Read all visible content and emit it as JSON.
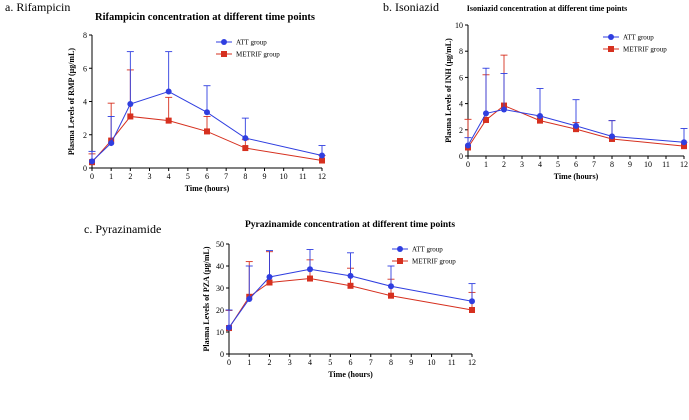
{
  "panels": [
    {
      "label": "a. Rifampicin"
    },
    {
      "label": "b. Isoniazid"
    },
    {
      "label": "c. Pyrazinamide"
    }
  ],
  "colors": {
    "att": "#2f3ee0",
    "metrif": "#d6301f",
    "axis": "#000000"
  },
  "chart_data": [
    {
      "type": "line",
      "title": "Rifampicin concentration at different time points",
      "xlabel": "Time (hours)",
      "ylabel": "Plasma Levels of RMP (μg/mL)",
      "x": [
        0,
        1,
        2,
        4,
        6,
        8,
        12
      ],
      "xticks": [
        0,
        1,
        2,
        3,
        4,
        5,
        6,
        7,
        8,
        9,
        10,
        11,
        12
      ],
      "yticks": [
        0,
        2,
        4,
        6,
        8
      ],
      "xlim": [
        0,
        12
      ],
      "ylim": [
        0,
        8
      ],
      "legend": "top-right",
      "series": [
        {
          "name": "ATT group",
          "marker": "circle",
          "values": [
            0.4,
            1.5,
            3.85,
            4.6,
            3.35,
            1.8,
            0.75
          ],
          "err": [
            0.6,
            1.6,
            3.15,
            2.4,
            1.6,
            1.2,
            0.6
          ]
        },
        {
          "name": "METRIF group",
          "marker": "square",
          "values": [
            0.35,
            1.65,
            3.1,
            2.85,
            2.2,
            1.2,
            0.45
          ],
          "err": [
            0.5,
            2.25,
            2.8,
            1.4,
            0.9,
            0.5,
            0.3
          ]
        }
      ]
    },
    {
      "type": "line",
      "title": "Isoniazid concentration at different time points",
      "xlabel": "Time (hours)",
      "ylabel": "Plasma Levels of INH (μg/mL)",
      "x": [
        0,
        1,
        2,
        4,
        6,
        8,
        12
      ],
      "xticks": [
        0,
        1,
        2,
        3,
        4,
        5,
        6,
        7,
        8,
        9,
        10,
        11,
        12
      ],
      "yticks": [
        0,
        2,
        4,
        6,
        8,
        10
      ],
      "xlim": [
        0,
        12
      ],
      "ylim": [
        0,
        10
      ],
      "legend": "top-right",
      "series": [
        {
          "name": "ATT group",
          "marker": "circle",
          "values": [
            0.8,
            3.25,
            3.55,
            3.05,
            2.3,
            1.5,
            1.05
          ],
          "err": [
            0.6,
            3.45,
            2.75,
            2.1,
            2.0,
            1.2,
            1.05
          ]
        },
        {
          "name": "METRIF group",
          "marker": "square",
          "values": [
            0.65,
            2.75,
            3.85,
            2.7,
            2.05,
            1.3,
            0.75
          ],
          "err": [
            2.15,
            3.45,
            3.85,
            0.3,
            0.5,
            1.4,
            0.3
          ]
        }
      ]
    },
    {
      "type": "line",
      "title": "Pyrazinamide concentration at different time points",
      "xlabel": "Time (hours)",
      "ylabel": "Plasma Levels of PZA (μg/mL)",
      "x": [
        0,
        1,
        2,
        4,
        6,
        8,
        12
      ],
      "xticks": [
        0,
        1,
        2,
        3,
        4,
        5,
        6,
        7,
        8,
        9,
        10,
        11,
        12
      ],
      "yticks": [
        0,
        10,
        20,
        30,
        40,
        50
      ],
      "xlim": [
        0,
        12
      ],
      "ylim": [
        0,
        50
      ],
      "legend": "top-right",
      "series": [
        {
          "name": "ATT group",
          "marker": "circle",
          "values": [
            12,
            25,
            35,
            38.5,
            35.5,
            30.8,
            24
          ],
          "err": [
            8,
            15,
            12,
            9,
            10.5,
            9.2,
            8
          ]
        },
        {
          "name": "METRIF group",
          "marker": "square",
          "values": [
            11.8,
            26,
            32.5,
            34.3,
            31,
            26.5,
            20
          ],
          "err": [
            8,
            16,
            14,
            8.5,
            8,
            7.5,
            8
          ]
        }
      ]
    }
  ]
}
